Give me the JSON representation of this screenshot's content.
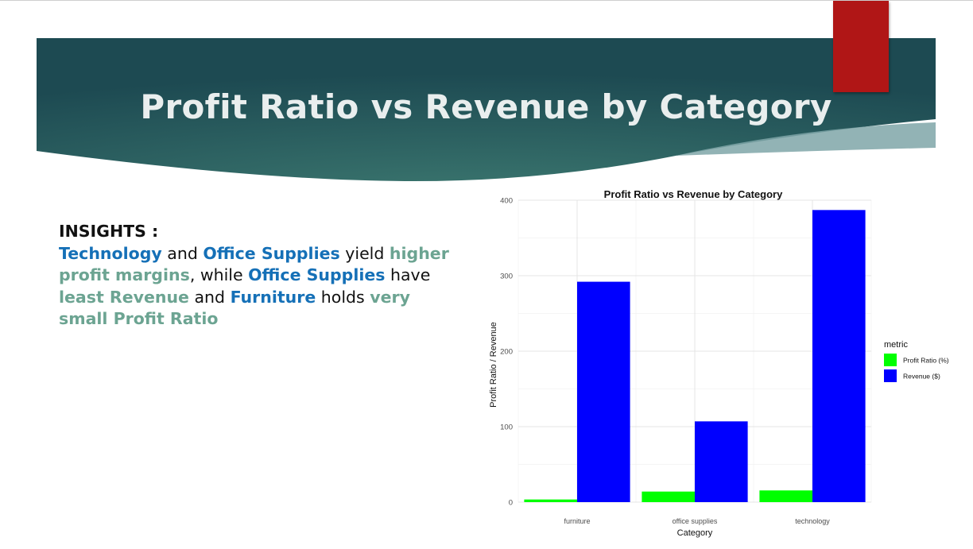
{
  "slide": {
    "title": "Profit Ratio vs Revenue by Category"
  },
  "insights": {
    "heading": "INSIGHTS :",
    "segments": [
      {
        "text": "Technology",
        "style": "blue"
      },
      {
        "text": " and ",
        "style": "plain"
      },
      {
        "text": "Office Supplies",
        "style": "blue"
      },
      {
        "text": " yield ",
        "style": "plain"
      },
      {
        "text": "higher profit margins",
        "style": "green"
      },
      {
        "text": ", while ",
        "style": "plain"
      },
      {
        "text": "Office Supplies",
        "style": "blue"
      },
      {
        "text": " have ",
        "style": "plain"
      },
      {
        "text": "least Revenue",
        "style": "green"
      },
      {
        "text": " and ",
        "style": "plain"
      },
      {
        "text": "Furniture",
        "style": "blue"
      },
      {
        "text": " holds ",
        "style": "plain"
      },
      {
        "text": "very small Profit Ratio",
        "style": "green"
      }
    ]
  },
  "colors": {
    "banner_dark": "#1d4a52",
    "banner_light": "#3e7b72",
    "accent_red": "#b01616",
    "highlight_blue": "#1570b7",
    "highlight_green": "#6ca492"
  },
  "chart_data": {
    "type": "bar",
    "title": "Profit Ratio vs Revenue by Category",
    "xlabel": "Category",
    "ylabel": "Profit Ratio / Revenue",
    "categories": [
      "furniture",
      "office supplies",
      "technology"
    ],
    "series": [
      {
        "name": "Profit Ratio (%)",
        "color": "#00ff00",
        "values": [
          3.5,
          14,
          15.5
        ]
      },
      {
        "name": "Revenue ($)",
        "color": "#0000ff",
        "values": [
          292,
          107,
          387
        ]
      }
    ],
    "ylim": [
      0,
      400
    ],
    "yticks": [
      0,
      100,
      200,
      300,
      400
    ],
    "legend_title": "metric",
    "legend_position": "right",
    "grid": true
  }
}
